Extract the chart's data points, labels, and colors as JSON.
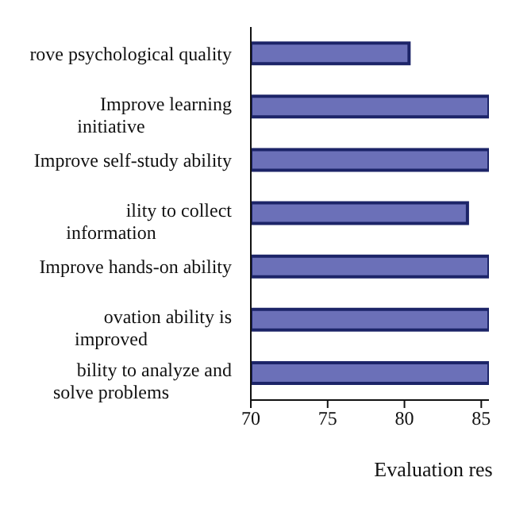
{
  "chart_data": {
    "type": "bar",
    "orientation": "horizontal",
    "categories": [
      "rove psychological quality",
      "Improve learning initiative",
      "Improve self-study ability",
      "ility to collect information",
      "Improve hands-on ability",
      "ovation ability is improved",
      "bility to analyze and solve problems"
    ],
    "values": [
      80.3,
      85.5,
      85.5,
      84.1,
      85.5,
      85.5,
      85.5
    ],
    "color": "#6b70b8",
    "xlim": [
      70,
      85.5
    ],
    "xticks": [
      70,
      75,
      80,
      85
    ],
    "xlabel": "Evaluation res",
    "grid": false,
    "legend": false
  }
}
